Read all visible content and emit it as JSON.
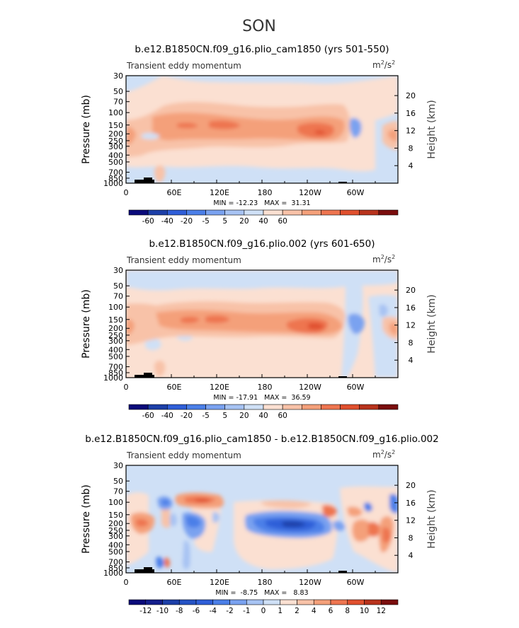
{
  "figure": {
    "season_title": "SON"
  },
  "chart_data": [
    {
      "type": "heatmap",
      "title": "b.e12.B1850CN.f09_g16.plio_cam1850 (yrs 501-550)",
      "left_label": "Transient eddy momentum",
      "units": "m²/s²",
      "units_base": "m",
      "units_exp1": "2",
      "units_mid": "/s",
      "units_exp2": "2",
      "ylabel": "Pressure (mb)",
      "ylabel_right": "Height (km)",
      "x_ticks": [
        "0",
        "60E",
        "120E",
        "180",
        "120W",
        "60W"
      ],
      "x_tick_values": [
        0,
        60,
        120,
        180,
        240,
        300
      ],
      "xlim": [
        0,
        360
      ],
      "y_ticks": [
        "30",
        "50",
        "70",
        "100",
        "150",
        "200",
        "250",
        "300",
        "400",
        "500",
        "700",
        "850",
        "1000"
      ],
      "y_tick_values": [
        30,
        50,
        70,
        100,
        150,
        200,
        250,
        300,
        400,
        500,
        700,
        850,
        1000
      ],
      "ylim": [
        1000,
        30
      ],
      "height_ticks": [
        "20",
        "16",
        "12",
        "8",
        "4"
      ],
      "height_tick_values": [
        20,
        16,
        12,
        8,
        4
      ],
      "stats": "MIN = -12.23   MAX =  31.31",
      "min": -12.23,
      "max": 31.31,
      "colorbar_levels": [
        -60,
        -40,
        -20,
        -5,
        5,
        20,
        40,
        60
      ],
      "colorbar_labels": [
        "-60",
        "-40",
        "-20",
        "-5",
        "5",
        "20",
        "40",
        "60"
      ],
      "colorbar_colors": [
        "#0a0a7a",
        "#1c3fa8",
        "#2f5ed8",
        "#4b7fe8",
        "#7aa2f0",
        "#a7c3f3",
        "#cfe0f6",
        "#fbe0d2",
        "#f8c2a8",
        "#f4a07a",
        "#ee7550",
        "#e0502e",
        "#b8331c",
        "#7a0d0d"
      ],
      "features": [
        {
          "lon_min": 60,
          "lon_max": 330,
          "level": 150,
          "value": 12
        },
        {
          "lon_min": 240,
          "lon_max": 255,
          "level": 200,
          "value": 31
        },
        {
          "lon_min": 290,
          "lon_max": 300,
          "level": 180,
          "value": -8
        }
      ]
    },
    {
      "type": "heatmap",
      "title": "b.e12.B1850CN.f09_g16.plio.002 (yrs 601-650)",
      "left_label": "Transient eddy momentum",
      "units": "m²/s²",
      "units_base": "m",
      "units_exp1": "2",
      "units_mid": "/s",
      "units_exp2": "2",
      "ylabel": "Pressure (mb)",
      "ylabel_right": "Height (km)",
      "x_ticks": [
        "0",
        "60E",
        "120E",
        "180",
        "120W",
        "60W"
      ],
      "x_tick_values": [
        0,
        60,
        120,
        180,
        240,
        300
      ],
      "xlim": [
        0,
        360
      ],
      "y_ticks": [
        "30",
        "50",
        "70",
        "100",
        "150",
        "200",
        "250",
        "300",
        "400",
        "500",
        "700",
        "850",
        "1000"
      ],
      "y_tick_values": [
        30,
        50,
        70,
        100,
        150,
        200,
        250,
        300,
        400,
        500,
        700,
        850,
        1000
      ],
      "ylim": [
        1000,
        30
      ],
      "height_ticks": [
        "20",
        "16",
        "12",
        "8",
        "4"
      ],
      "height_tick_values": [
        20,
        16,
        12,
        8,
        4
      ],
      "stats": "MIN = -17.91   MAX =  36.59",
      "min": -17.91,
      "max": 36.59,
      "colorbar_levels": [
        -60,
        -40,
        -20,
        -5,
        5,
        20,
        40,
        60
      ],
      "colorbar_labels": [
        "-60",
        "-40",
        "-20",
        "-5",
        "5",
        "20",
        "40",
        "60"
      ],
      "colorbar_colors": [
        "#0a0a7a",
        "#1c3fa8",
        "#2f5ed8",
        "#4b7fe8",
        "#7aa2f0",
        "#a7c3f3",
        "#cfe0f6",
        "#fbe0d2",
        "#f8c2a8",
        "#f4a07a",
        "#ee7550",
        "#e0502e",
        "#b8331c",
        "#7a0d0d"
      ],
      "features": [
        {
          "lon_min": 40,
          "lon_max": 300,
          "level": 170,
          "value": 15
        },
        {
          "lon_min": 240,
          "lon_max": 260,
          "level": 200,
          "value": 36
        },
        {
          "lon_min": 290,
          "lon_max": 300,
          "level": 190,
          "value": -12
        }
      ]
    },
    {
      "type": "heatmap",
      "title": "b.e12.B1850CN.f09_g16.plio_cam1850 - b.e12.B1850CN.f09_g16.plio.002",
      "left_label": "Transient eddy momentum",
      "units": "m²/s²",
      "units_base": "m",
      "units_exp1": "2",
      "units_mid": "/s",
      "units_exp2": "2",
      "ylabel": "Pressure (mb)",
      "ylabel_right": "Height (km)",
      "x_ticks": [
        "0",
        "60E",
        "120E",
        "180",
        "120W",
        "60W"
      ],
      "x_tick_values": [
        0,
        60,
        120,
        180,
        240,
        300
      ],
      "xlim": [
        0,
        360
      ],
      "y_ticks": [
        "30",
        "50",
        "70",
        "100",
        "150",
        "200",
        "250",
        "300",
        "400",
        "500",
        "700",
        "850",
        "1000"
      ],
      "y_tick_values": [
        30,
        50,
        70,
        100,
        150,
        200,
        250,
        300,
        400,
        500,
        700,
        850,
        1000
      ],
      "ylim": [
        1000,
        30
      ],
      "height_ticks": [
        "20",
        "16",
        "12",
        "8",
        "4"
      ],
      "height_tick_values": [
        20,
        16,
        12,
        8,
        4
      ],
      "stats": "MIN =  -8.75   MAX =   8.83",
      "min": -8.75,
      "max": 8.83,
      "colorbar_levels": [
        -12,
        -10,
        -8,
        -6,
        -4,
        -2,
        -1,
        0,
        1,
        2,
        4,
        6,
        8,
        10,
        12
      ],
      "colorbar_labels": [
        "-12",
        "-10",
        "-8",
        "-6",
        "-4",
        "-2",
        "-1",
        "0",
        "1",
        "2",
        "4",
        "6",
        "8",
        "10",
        "12"
      ],
      "colorbar_colors": [
        "#0a0a7a",
        "#141e8c",
        "#1c3fa8",
        "#2553c4",
        "#2f5ed8",
        "#4b7fe8",
        "#7aa2f0",
        "#a7c3f3",
        "#cfe0f6",
        "#fbe0d2",
        "#f8c2a8",
        "#f4a07a",
        "#ee7550",
        "#e0502e",
        "#b8331c",
        "#7a0d0d"
      ],
      "features": [
        {
          "lon_min": 80,
          "lon_max": 115,
          "level": 100,
          "value": 8
        },
        {
          "lon_min": 170,
          "lon_max": 240,
          "level": 200,
          "value": -8
        },
        {
          "lon_min": 0,
          "lon_max": 30,
          "level": 200,
          "value": 7
        },
        {
          "lon_min": 40,
          "lon_max": 60,
          "level": 100,
          "value": -5
        }
      ]
    }
  ]
}
